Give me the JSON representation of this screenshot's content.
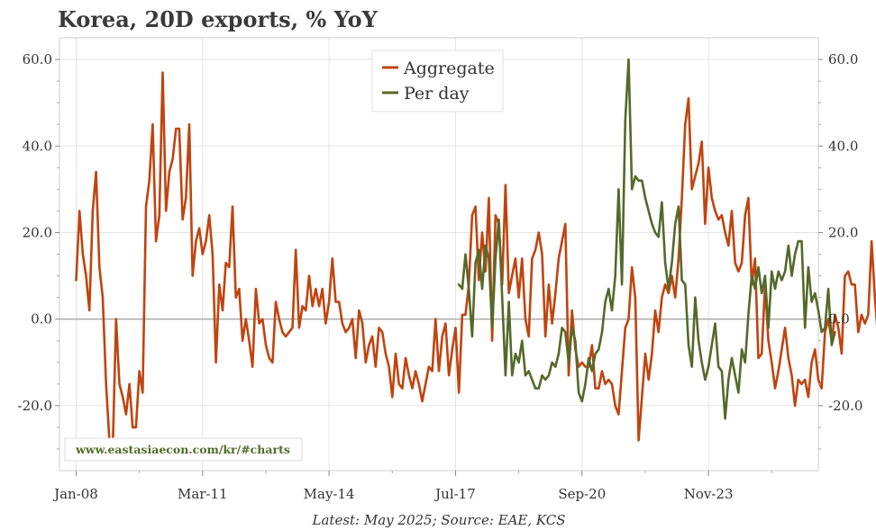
{
  "page": {
    "title": "Korea, 20D exports, % YoY",
    "watermark": "www.eastasiaecon.com/kr/#charts",
    "footer": "Latest: May 2025; Source: EAE, KCS"
  },
  "chart_data": {
    "type": "line",
    "title": "Korea, 20D exports, % YoY",
    "xlabel": "",
    "ylabel": "",
    "x_range": [
      "2007-08",
      "2026-08"
    ],
    "ylim": [
      -35,
      65
    ],
    "y_ticks": [
      60,
      40,
      20,
      0,
      -20
    ],
    "y_tick_labels": [
      "60.0",
      "40.0",
      "20.0",
      "0.0",
      "-20.0"
    ],
    "x_ticks": [
      "2008-01",
      "2011-03",
      "2014-05",
      "2017-07",
      "2020-09",
      "2023-11"
    ],
    "x_tick_labels": [
      "Jan-08",
      "Mar-11",
      "May-14",
      "Jul-17",
      "Sep-20",
      "Nov-23"
    ],
    "grid": true,
    "legend_position": "top-center",
    "colors": {
      "Aggregate": "#c0440f",
      "Per day": "#55692a",
      "zero_line": "#aaaaaa",
      "grid": "#e4e4e4"
    },
    "series": [
      {
        "name": "Aggregate",
        "start": "2008-01",
        "values": [
          9,
          25,
          15,
          10,
          2,
          25,
          34,
          12,
          5,
          -15,
          -28,
          -30,
          0,
          -15,
          -18,
          -22,
          -15,
          -25,
          -25,
          -12,
          -17,
          26,
          32,
          45,
          18,
          24,
          57,
          25,
          34,
          37,
          44,
          44,
          23,
          28,
          45,
          10,
          18,
          21,
          15,
          18,
          24,
          15,
          -10,
          8,
          2,
          13,
          12,
          26,
          5,
          7,
          -5,
          0,
          -5,
          -11,
          7,
          -1,
          0,
          -6,
          -9,
          -10,
          4,
          0,
          -3,
          -4,
          -3,
          -2,
          16,
          -2,
          3,
          2,
          10,
          3,
          7,
          3,
          7,
          -1,
          4,
          14,
          4,
          4,
          -1,
          -3,
          -2,
          0,
          -9,
          2,
          -1,
          -10,
          -6,
          -4,
          -11,
          -2,
          -3,
          -8,
          -11,
          -18,
          -8,
          -15,
          -16,
          -9,
          -13,
          -16,
          -12,
          -15,
          -19,
          -15,
          -11,
          -12,
          0,
          -12,
          -4,
          -1,
          -13,
          -7,
          -2,
          -17,
          1,
          1,
          8,
          24,
          26,
          9,
          20,
          11,
          28,
          -5,
          24,
          22,
          8,
          31,
          6,
          10,
          14,
          5,
          14,
          0,
          -4,
          14,
          16,
          20,
          15,
          -4,
          8,
          -1,
          6,
          14,
          18,
          22,
          -13,
          2,
          -7,
          -11,
          -10,
          -11,
          -11,
          -6,
          -16,
          -16,
          -12,
          -15,
          -14,
          -15,
          -20,
          -22,
          -12,
          -2,
          0,
          12,
          5,
          -28,
          -18,
          -8,
          -14,
          -8,
          2,
          -3,
          5,
          8,
          6,
          10,
          5,
          14,
          28,
          45,
          51,
          30,
          33,
          36,
          41,
          22,
          35,
          28,
          25,
          23,
          24,
          20,
          17,
          25,
          13,
          11,
          13,
          24,
          28,
          8,
          14,
          -9,
          -8,
          8,
          -5,
          -10,
          -16,
          -12,
          -7,
          -2,
          -9,
          -13,
          -20,
          -14,
          -15,
          -14,
          -18,
          -10,
          -7,
          -14,
          -16,
          -3,
          0,
          -5,
          1,
          -2,
          -8,
          10,
          11,
          8,
          8,
          -3,
          1,
          -1,
          1,
          18,
          5,
          -5,
          18,
          6,
          10,
          -2,
          -3,
          15,
          2
        ]
      },
      {
        "name": "Per day",
        "start": "2017-08",
        "values": [
          8,
          7,
          15,
          7,
          -4,
          13,
          16,
          7,
          17,
          14,
          -2,
          14,
          23,
          5,
          -13,
          4,
          -13,
          -8,
          -10,
          -5,
          -13,
          -12,
          -14,
          -16,
          -16,
          -13,
          -14,
          -13,
          -10,
          -11,
          -8,
          -2,
          -3,
          -10,
          -2,
          -5,
          -17,
          -19,
          -15,
          -9,
          -12,
          -8,
          -7,
          -3,
          4,
          7,
          2,
          10,
          30,
          8,
          46,
          60,
          30,
          33,
          32,
          32,
          28,
          25,
          22,
          20,
          19,
          27,
          13,
          7,
          13,
          22,
          26,
          9,
          8,
          -6,
          -11,
          5,
          -5,
          -10,
          -14,
          -11,
          -6,
          -1,
          -11,
          -12,
          -23,
          -14,
          -9,
          -13,
          -17,
          -7,
          -10,
          1,
          10,
          7,
          12,
          6,
          10,
          -2,
          11,
          7,
          11,
          9,
          11,
          17,
          10,
          15,
          18,
          18,
          -2,
          12,
          4,
          6,
          2,
          -3,
          -2,
          7,
          -6,
          -3
        ]
      }
    ]
  }
}
